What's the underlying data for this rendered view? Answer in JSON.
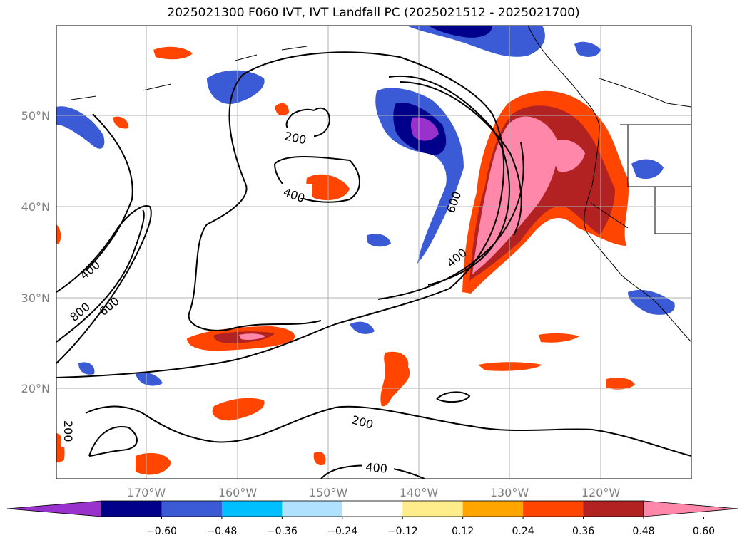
{
  "title": "2025021300 F060 IVT, IVT Landfall PC (2025021512 - 2025021700)",
  "lat_labels": [
    "50°N",
    "40°N",
    "30°N",
    "20°N"
  ],
  "lon_labels": [
    "170°W",
    "160°W",
    "150°W",
    "140°W",
    "130°W",
    "120°W"
  ],
  "colorbar": {
    "colors": [
      "#9932cc",
      "#00008b",
      "#3b5bd6",
      "#00bfff",
      "#b0e2ff",
      "#ffffff",
      "#ffec8b",
      "#ffa500",
      "#ff4500",
      "#b22222",
      "#ff88aa"
    ],
    "labels": [
      "−0.60",
      "−0.48",
      "−0.36",
      "−0.24",
      "−0.12",
      "0.12",
      "0.24",
      "0.36",
      "0.48",
      "0.60"
    ]
  },
  "contour_labels": [
    "200",
    "400",
    "400",
    "600",
    "800",
    "600",
    "400",
    "200",
    "200",
    "400"
  ]
}
